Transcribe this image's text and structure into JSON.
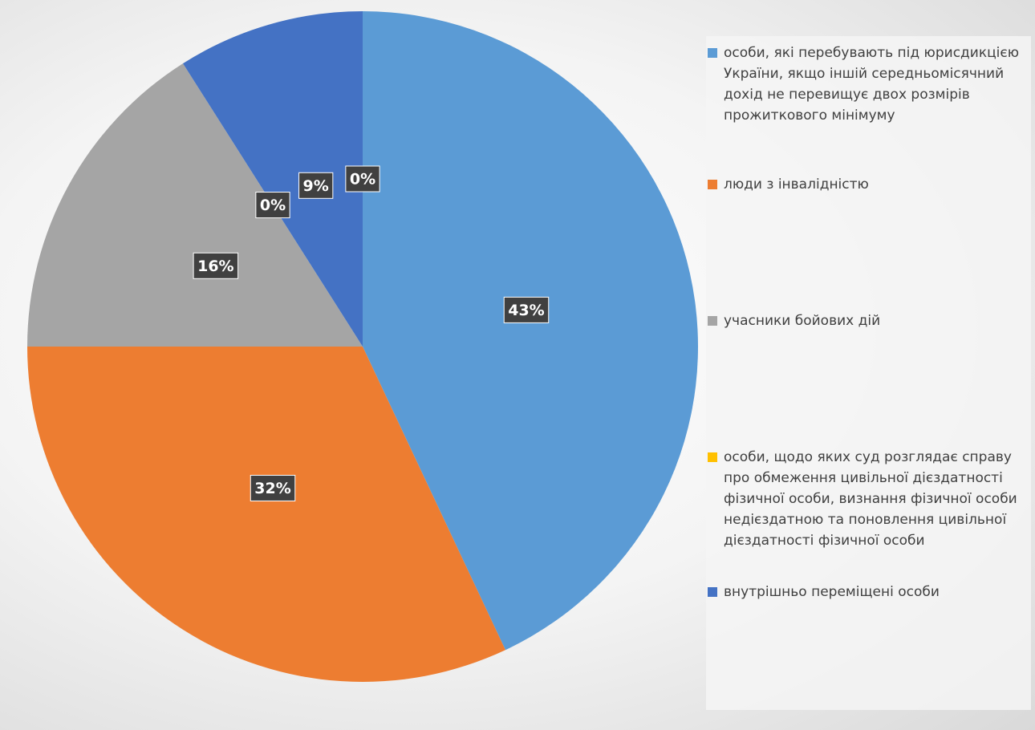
{
  "chart_data": {
    "type": "pie",
    "categories": [
      "особи, які перебувають під юрисдикцією України, якщо іншій середньомісячний дохід не перевищує двох розмірів прожиткового мінімуму",
      "люди з інвалідністю",
      "учасники бойових дій",
      "особи, щодо яких суд розглядає справу про обмеження цивільної дієздатності фізичної особи, визнання фізичної особи недієздатною та поновлення цивільної дієздатності фізичної особи",
      "внутрішньо переміщені особи",
      null
    ],
    "values": [
      43,
      32,
      16,
      0,
      9,
      0
    ],
    "value_labels": [
      "43%",
      "32%",
      "16%",
      "0%",
      "9%",
      "0%"
    ],
    "colors": [
      "#5b9bd5",
      "#ed7d31",
      "#a5a5a5",
      "#ffc000",
      "#4472c4",
      "#70ad47"
    ],
    "legend": "right"
  }
}
